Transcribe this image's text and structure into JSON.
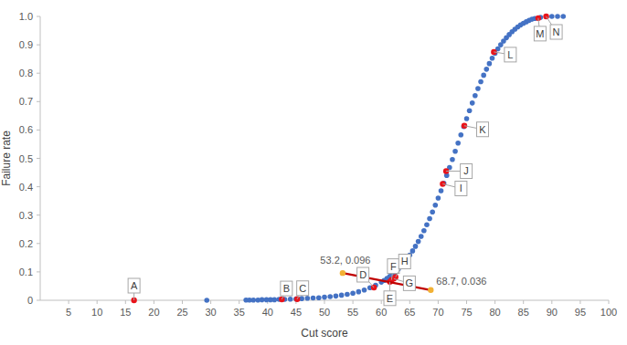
{
  "chart_data": {
    "type": "scatter",
    "x_label": "Cut score",
    "y_label": "Failure rate",
    "xlim": [
      0,
      100
    ],
    "ylim": [
      0,
      1
    ],
    "xticks": [
      5,
      10,
      15,
      20,
      25,
      30,
      35,
      40,
      45,
      50,
      55,
      60,
      65,
      70,
      75,
      80,
      85,
      90,
      95,
      100
    ],
    "yticks": [
      0,
      0.1,
      0.2,
      0.3,
      0.4,
      0.5,
      0.6,
      0.7,
      0.8,
      0.9,
      {
        "value": 1,
        "label": "1.0"
      }
    ],
    "grid": false,
    "series": [
      {
        "type": "scatter",
        "marker": "circle",
        "color": "#4472c4",
        "x": [
          29.3,
          36.2,
          36.8,
          37.5,
          38.3,
          39.0,
          39.8,
          40.5,
          41.2,
          42.0,
          43.0,
          44.0,
          45.0,
          46.0,
          47.0,
          48.0,
          49.0,
          50.0,
          51.0,
          52.0,
          53.0,
          54.0,
          55.0,
          56.0,
          57.0,
          58.0,
          59.0,
          60.0,
          60.5,
          61.0,
          61.5,
          62.0,
          62.5,
          63.0,
          63.5,
          64.0,
          64.5,
          65.0,
          65.5,
          66.0,
          66.5,
          67.0,
          67.5,
          68.0,
          68.5,
          69.0,
          69.5,
          70.0,
          70.5,
          71.0,
          71.5,
          72.0,
          72.5,
          73.0,
          73.5,
          74.0,
          74.5,
          75.0,
          75.5,
          76.0,
          76.5,
          77.0,
          77.5,
          78.0,
          78.5,
          79.0,
          79.5,
          80.0,
          80.5,
          81.0,
          81.5,
          82.0,
          82.5,
          83.0,
          83.5,
          84.0,
          84.5,
          85.0,
          85.5,
          86.0,
          86.5,
          87.0,
          88.0,
          89.0,
          90.0,
          91.0,
          92.0
        ],
        "values": [
          0,
          0.001,
          0.001,
          0.001,
          0.001,
          0.002,
          0.002,
          0.002,
          0.002,
          0.003,
          0.003,
          0.004,
          0.005,
          0.006,
          0.007,
          0.008,
          0.009,
          0.011,
          0.013,
          0.015,
          0.018,
          0.021,
          0.025,
          0.03,
          0.036,
          0.044,
          0.053,
          0.064,
          0.07,
          0.077,
          0.084,
          0.092,
          0.1,
          0.11,
          0.12,
          0.132,
          0.145,
          0.159,
          0.174,
          0.19,
          0.207,
          0.225,
          0.245,
          0.266,
          0.288,
          0.311,
          0.335,
          0.36,
          0.386,
          0.412,
          0.44,
          0.468,
          0.496,
          0.525,
          0.554,
          0.583,
          0.612,
          0.64,
          0.668,
          0.695,
          0.721,
          0.746,
          0.77,
          0.793,
          0.814,
          0.834,
          0.853,
          0.87,
          0.886,
          0.9,
          0.913,
          0.925,
          0.936,
          0.946,
          0.955,
          0.963,
          0.97,
          0.976,
          0.981,
          0.986,
          0.99,
          0.993,
          0.997,
          0.999,
          1,
          1,
          1
        ]
      },
      {
        "type": "scatter",
        "marker": "circle",
        "color": "#e8141b",
        "x": [
          16.5,
          42.5,
          45.2,
          58.7,
          61.5,
          61.8,
          62.2,
          62.5,
          70.8,
          71.4,
          74.6,
          79.8,
          87.6,
          89.0
        ],
        "values": [
          0,
          0.003,
          0.004,
          0.045,
          0.065,
          0.072,
          0.076,
          0.082,
          0.41,
          0.455,
          0.615,
          0.875,
          0.994,
          1
        ],
        "point_labels": [
          "A",
          "B",
          "C",
          "D",
          "E",
          "F",
          "G",
          "H",
          "I",
          "J",
          "K",
          "L",
          "M",
          "N"
        ]
      },
      {
        "type": "line",
        "marker": "circle",
        "color": "#c00000",
        "colors": [
          "#f2b134",
          "#f2b134"
        ],
        "x": [
          53.2,
          68.7
        ],
        "values": [
          0.096,
          0.036
        ],
        "value_labels": [
          "53.2, 0.096",
          "68.7, 0.036"
        ]
      }
    ]
  }
}
